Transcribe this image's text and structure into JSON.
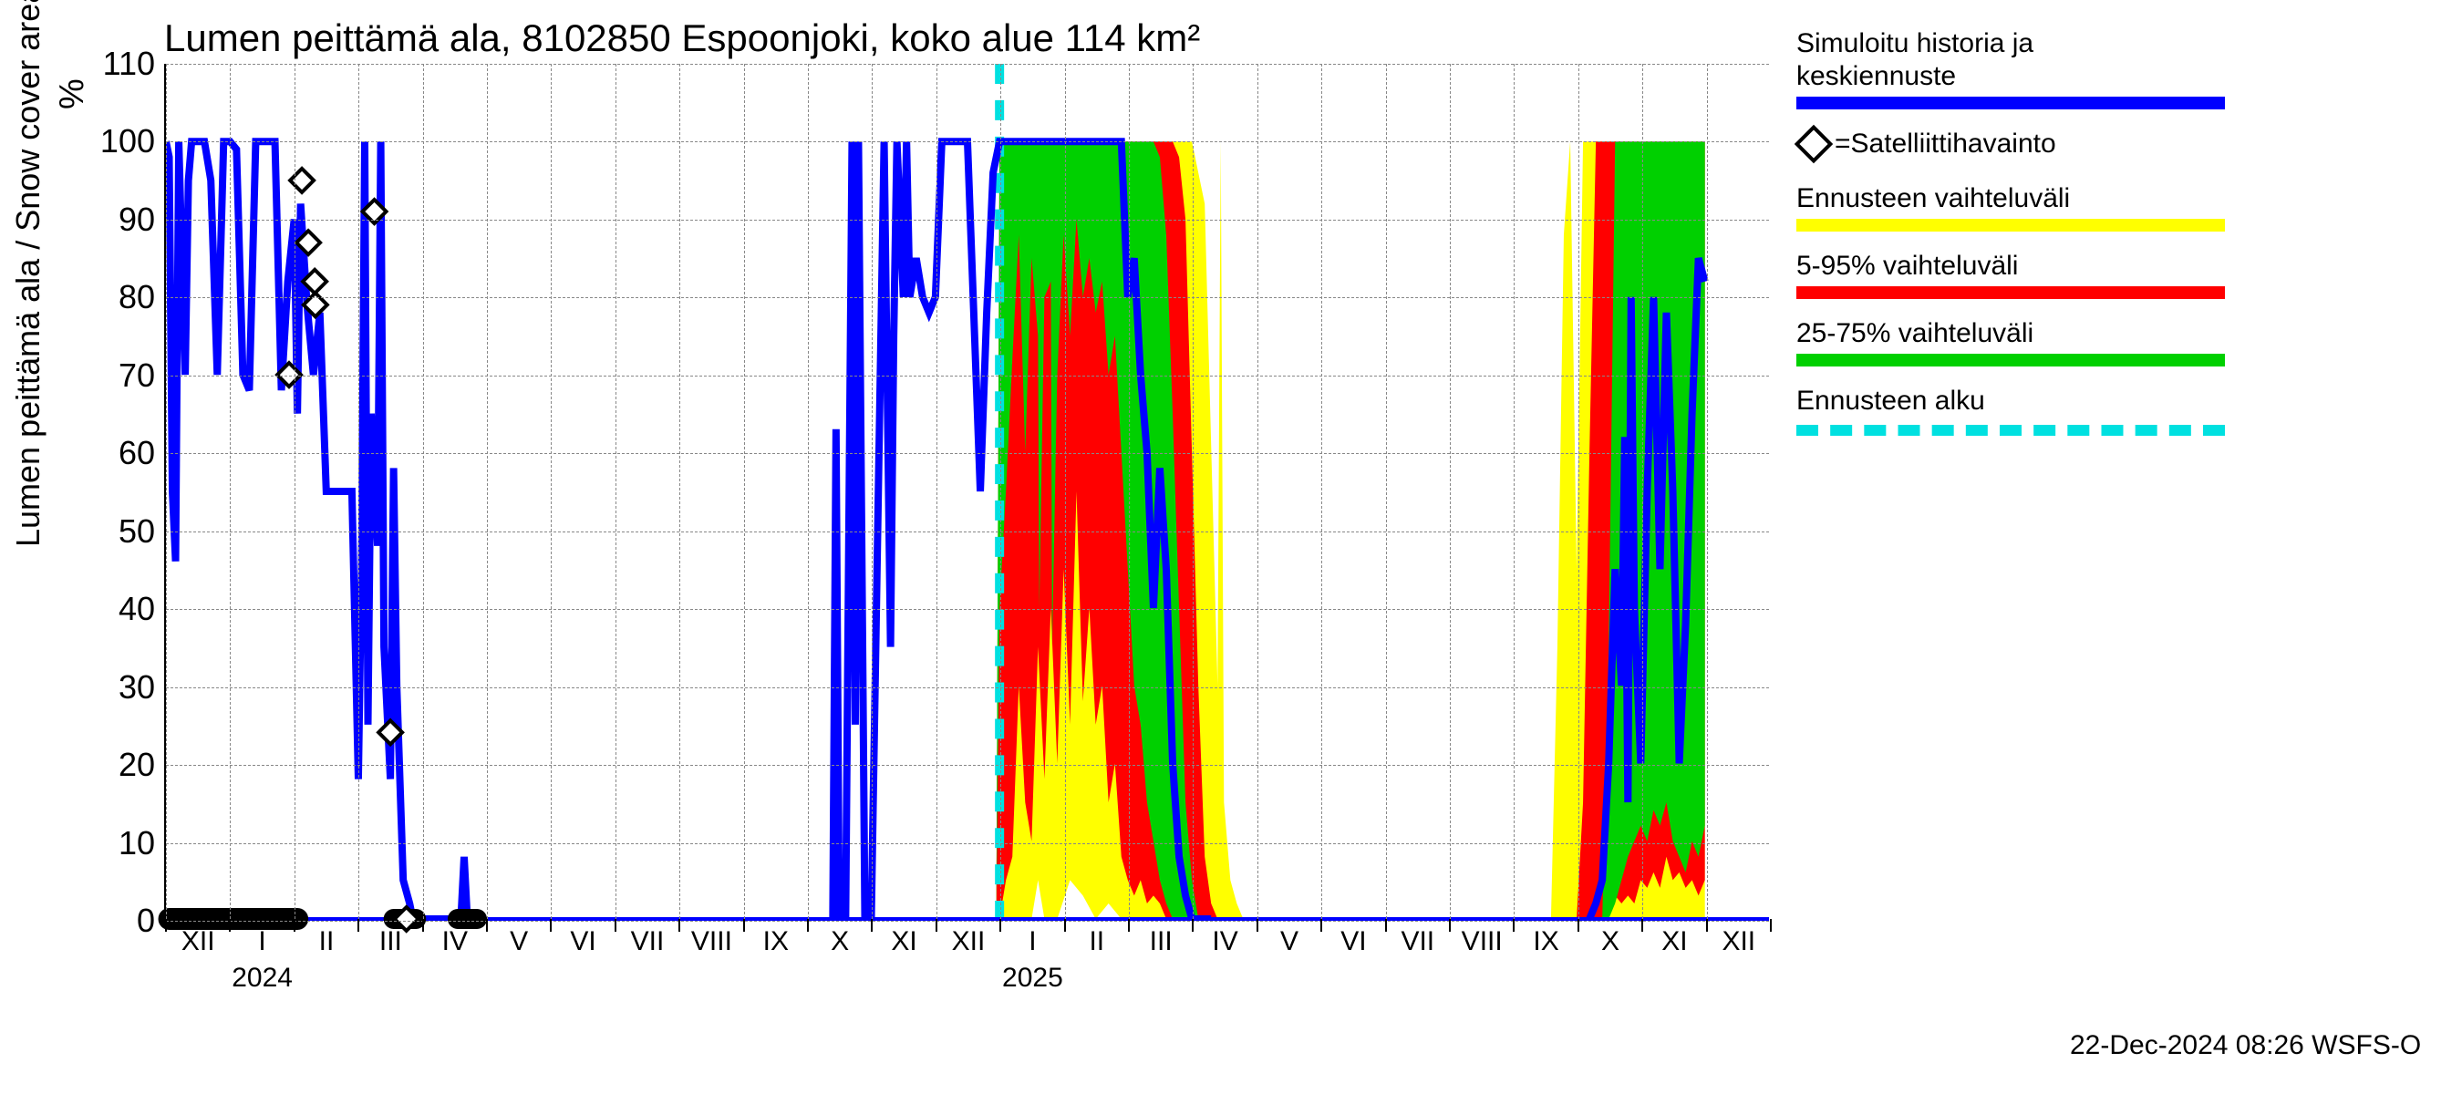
{
  "chart": {
    "type": "timeseries-forecast",
    "title": "Lumen peittämä ala, 8102850 Espoonjoki, koko alue 114 km²",
    "ylabel": "Lumen peittämä ala / Snow cover area",
    "yunit": "%",
    "background_color": "#ffffff",
    "grid_color": "#888888",
    "grid_dash": true,
    "axis_color": "#000000",
    "title_fontsize": 42,
    "label_fontsize": 36,
    "tick_fontsize": 34,
    "ylim": [
      0,
      110
    ],
    "yticks": [
      0,
      10,
      20,
      30,
      40,
      50,
      60,
      70,
      80,
      90,
      100,
      110
    ],
    "x_months": [
      "XII",
      "I",
      "II",
      "III",
      "IV",
      "V",
      "VI",
      "VII",
      "VIII",
      "IX",
      "X",
      "XI",
      "XII",
      "I",
      "II",
      "III",
      "IV",
      "V",
      "VI",
      "VII",
      "VIII",
      "IX",
      "X",
      "XI",
      "XII"
    ],
    "x_year_labels": [
      {
        "idx": 1,
        "text": "2024"
      },
      {
        "idx": 13,
        "text": "2025"
      }
    ],
    "n_months": 25,
    "forecast_start_idx": 13.0,
    "colors": {
      "sim_history": "#0000ff",
      "band_full": "#ffff00",
      "band_5_95": "#ff0000",
      "band_25_75": "#00d000",
      "forecast_start": "#00e0e0",
      "satellite_marker_edge": "#000000",
      "satellite_marker_fill": "#ffffff"
    },
    "line_width_main": 8,
    "sim_history_points": [
      [
        0.0,
        100
      ],
      [
        0.05,
        98
      ],
      [
        0.1,
        55
      ],
      [
        0.15,
        46
      ],
      [
        0.2,
        100
      ],
      [
        0.3,
        70
      ],
      [
        0.35,
        95
      ],
      [
        0.4,
        100
      ],
      [
        0.5,
        100
      ],
      [
        0.6,
        100
      ],
      [
        0.7,
        95
      ],
      [
        0.8,
        70
      ],
      [
        0.9,
        100
      ],
      [
        1.0,
        100
      ],
      [
        1.1,
        99
      ],
      [
        1.2,
        70
      ],
      [
        1.3,
        68
      ],
      [
        1.4,
        100
      ],
      [
        1.5,
        100
      ],
      [
        1.6,
        100
      ],
      [
        1.7,
        100
      ],
      [
        1.8,
        68
      ],
      [
        1.9,
        82
      ],
      [
        2.0,
        90
      ],
      [
        2.05,
        65
      ],
      [
        2.1,
        92
      ],
      [
        2.2,
        79
      ],
      [
        2.3,
        70
      ],
      [
        2.4,
        78
      ],
      [
        2.5,
        55
      ],
      [
        2.6,
        55
      ],
      [
        2.7,
        55
      ],
      [
        2.8,
        55
      ],
      [
        2.9,
        55
      ],
      [
        3.0,
        18
      ],
      [
        3.05,
        45
      ],
      [
        3.1,
        100
      ],
      [
        3.15,
        25
      ],
      [
        3.2,
        65
      ],
      [
        3.3,
        48
      ],
      [
        3.35,
        100
      ],
      [
        3.4,
        35
      ],
      [
        3.5,
        18
      ],
      [
        3.55,
        58
      ],
      [
        3.6,
        30
      ],
      [
        3.7,
        5
      ],
      [
        3.8,
        2
      ],
      [
        3.85,
        0
      ],
      [
        4.6,
        0
      ],
      [
        4.65,
        8
      ],
      [
        4.7,
        0
      ],
      [
        4.8,
        0
      ],
      [
        10.4,
        0
      ],
      [
        10.45,
        63
      ],
      [
        10.5,
        0
      ],
      [
        10.6,
        0
      ],
      [
        10.7,
        100
      ],
      [
        10.75,
        25
      ],
      [
        10.8,
        100
      ],
      [
        10.9,
        0
      ],
      [
        10.95,
        0
      ],
      [
        11.0,
        0
      ],
      [
        11.2,
        100
      ],
      [
        11.3,
        35
      ],
      [
        11.35,
        75
      ],
      [
        11.4,
        100
      ],
      [
        11.5,
        80
      ],
      [
        11.55,
        100
      ],
      [
        11.6,
        80
      ],
      [
        11.7,
        85
      ],
      [
        11.8,
        80
      ],
      [
        11.9,
        78
      ],
      [
        12.0,
        80
      ],
      [
        12.1,
        100
      ],
      [
        12.3,
        100
      ],
      [
        12.5,
        100
      ],
      [
        12.7,
        55
      ],
      [
        12.8,
        78
      ],
      [
        12.9,
        96
      ],
      [
        13.0,
        100
      ],
      [
        13.5,
        100
      ],
      [
        14.0,
        100
      ],
      [
        14.3,
        100
      ],
      [
        14.5,
        100
      ],
      [
        14.7,
        100
      ],
      [
        14.9,
        100
      ],
      [
        15.0,
        80
      ],
      [
        15.1,
        85
      ],
      [
        15.2,
        70
      ],
      [
        15.3,
        60
      ],
      [
        15.4,
        40
      ],
      [
        15.5,
        58
      ],
      [
        15.6,
        45
      ],
      [
        15.7,
        20
      ],
      [
        15.8,
        8
      ],
      [
        15.9,
        3
      ],
      [
        16.0,
        0
      ],
      [
        16.1,
        0
      ],
      [
        16.2,
        0
      ],
      [
        16.3,
        0
      ],
      [
        22.2,
        0
      ],
      [
        22.3,
        2
      ],
      [
        22.4,
        5
      ],
      [
        22.5,
        20
      ],
      [
        22.6,
        45
      ],
      [
        22.7,
        30
      ],
      [
        22.75,
        62
      ],
      [
        22.8,
        15
      ],
      [
        22.85,
        80
      ],
      [
        22.9,
        40
      ],
      [
        23.0,
        20
      ],
      [
        23.1,
        55
      ],
      [
        23.2,
        80
      ],
      [
        23.3,
        45
      ],
      [
        23.4,
        78
      ],
      [
        23.5,
        55
      ],
      [
        23.6,
        20
      ],
      [
        23.7,
        38
      ],
      [
        23.8,
        65
      ],
      [
        23.9,
        85
      ],
      [
        24.0,
        82
      ]
    ],
    "satellite_points": [
      {
        "x": 1.92,
        "y": 70
      },
      {
        "x": 2.12,
        "y": 95
      },
      {
        "x": 2.22,
        "y": 87
      },
      {
        "x": 2.32,
        "y": 82
      },
      {
        "x": 2.33,
        "y": 79
      },
      {
        "x": 3.5,
        "y": 24
      },
      {
        "x": 3.25,
        "y": 91
      },
      {
        "x": 3.75,
        "y": 0
      }
    ],
    "satellite_baseline_left": [
      0.05,
      2.05
    ],
    "satellite_baseline_segments": [
      [
        3.55,
        3.9
      ],
      [
        4.55,
        4.85
      ]
    ],
    "band_full": [
      [
        12.95,
        0,
        0
      ],
      [
        13.0,
        0,
        100
      ],
      [
        13.1,
        0,
        100
      ],
      [
        13.3,
        0,
        100
      ],
      [
        13.5,
        0,
        100
      ],
      [
        13.6,
        5,
        100
      ],
      [
        13.7,
        0,
        100
      ],
      [
        13.9,
        0,
        100
      ],
      [
        14.1,
        5,
        100
      ],
      [
        14.3,
        3,
        100
      ],
      [
        14.5,
        0,
        100
      ],
      [
        14.7,
        2,
        100
      ],
      [
        14.9,
        0,
        100
      ],
      [
        15.1,
        0,
        100
      ],
      [
        15.3,
        0,
        100
      ],
      [
        15.5,
        0,
        100
      ],
      [
        15.7,
        0,
        100
      ],
      [
        15.9,
        0,
        100
      ],
      [
        16.0,
        0,
        100
      ],
      [
        16.2,
        0,
        92
      ],
      [
        16.4,
        0,
        30
      ],
      [
        16.45,
        0,
        100
      ],
      [
        16.5,
        0,
        15
      ],
      [
        16.6,
        0,
        5
      ],
      [
        16.7,
        0,
        2
      ],
      [
        16.8,
        0,
        0
      ],
      [
        21.6,
        0,
        0
      ],
      [
        21.7,
        0,
        35
      ],
      [
        21.8,
        0,
        88
      ],
      [
        21.9,
        0,
        100
      ],
      [
        22.0,
        0,
        45
      ],
      [
        22.1,
        0,
        100
      ],
      [
        22.2,
        0,
        100
      ],
      [
        22.4,
        0,
        100
      ],
      [
        22.6,
        0,
        100
      ],
      [
        22.8,
        0,
        100
      ],
      [
        23.0,
        0,
        100
      ],
      [
        23.2,
        0,
        100
      ],
      [
        23.4,
        0,
        100
      ],
      [
        23.6,
        0,
        100
      ],
      [
        23.8,
        0,
        100
      ],
      [
        24.0,
        0,
        100
      ]
    ],
    "band_5_95": [
      [
        12.95,
        0,
        0
      ],
      [
        13.0,
        0,
        100
      ],
      [
        13.1,
        5,
        100
      ],
      [
        13.2,
        8,
        100
      ],
      [
        13.3,
        30,
        100
      ],
      [
        13.4,
        15,
        100
      ],
      [
        13.5,
        10,
        100
      ],
      [
        13.6,
        35,
        100
      ],
      [
        13.7,
        18,
        100
      ],
      [
        13.8,
        40,
        100
      ],
      [
        13.9,
        20,
        100
      ],
      [
        14.0,
        45,
        100
      ],
      [
        14.1,
        25,
        100
      ],
      [
        14.2,
        55,
        100
      ],
      [
        14.3,
        28,
        100
      ],
      [
        14.4,
        40,
        100
      ],
      [
        14.5,
        25,
        100
      ],
      [
        14.6,
        30,
        100
      ],
      [
        14.7,
        15,
        100
      ],
      [
        14.8,
        20,
        100
      ],
      [
        14.9,
        8,
        100
      ],
      [
        15.0,
        5,
        100
      ],
      [
        15.1,
        3,
        100
      ],
      [
        15.2,
        5,
        100
      ],
      [
        15.3,
        2,
        100
      ],
      [
        15.4,
        3,
        100
      ],
      [
        15.5,
        2,
        100
      ],
      [
        15.6,
        0,
        100
      ],
      [
        15.7,
        0,
        100
      ],
      [
        15.8,
        0,
        98
      ],
      [
        15.9,
        0,
        90
      ],
      [
        16.0,
        0,
        60
      ],
      [
        16.1,
        0,
        30
      ],
      [
        16.2,
        0,
        8
      ],
      [
        16.3,
        0,
        2
      ],
      [
        16.4,
        0,
        0
      ],
      [
        22.0,
        0,
        0
      ],
      [
        22.1,
        0,
        15
      ],
      [
        22.2,
        0,
        60
      ],
      [
        22.3,
        0,
        100
      ],
      [
        22.4,
        0,
        100
      ],
      [
        22.5,
        2,
        100
      ],
      [
        22.6,
        3,
        100
      ],
      [
        22.7,
        2,
        100
      ],
      [
        22.8,
        3,
        100
      ],
      [
        22.9,
        2,
        100
      ],
      [
        23.0,
        5,
        100
      ],
      [
        23.1,
        4,
        100
      ],
      [
        23.2,
        6,
        100
      ],
      [
        23.3,
        4,
        100
      ],
      [
        23.4,
        8,
        100
      ],
      [
        23.5,
        5,
        100
      ],
      [
        23.6,
        6,
        100
      ],
      [
        23.7,
        4,
        100
      ],
      [
        23.8,
        5,
        100
      ],
      [
        23.9,
        3,
        100
      ],
      [
        24.0,
        5,
        100
      ]
    ],
    "band_25_75": [
      [
        12.95,
        0,
        0
      ],
      [
        13.0,
        40,
        100
      ],
      [
        13.1,
        55,
        100
      ],
      [
        13.2,
        72,
        100
      ],
      [
        13.3,
        88,
        100
      ],
      [
        13.4,
        60,
        100
      ],
      [
        13.5,
        85,
        100
      ],
      [
        13.6,
        75,
        100
      ],
      [
        13.62,
        40,
        100
      ],
      [
        13.7,
        80,
        100
      ],
      [
        13.8,
        82,
        100
      ],
      [
        13.82,
        35,
        100
      ],
      [
        13.9,
        70,
        100
      ],
      [
        14.0,
        88,
        100
      ],
      [
        14.1,
        75,
        100
      ],
      [
        14.2,
        90,
        100
      ],
      [
        14.3,
        80,
        100
      ],
      [
        14.4,
        85,
        100
      ],
      [
        14.5,
        78,
        100
      ],
      [
        14.6,
        82,
        100
      ],
      [
        14.7,
        70,
        100
      ],
      [
        14.8,
        75,
        100
      ],
      [
        14.9,
        60,
        100
      ],
      [
        15.0,
        45,
        100
      ],
      [
        15.1,
        30,
        100
      ],
      [
        15.2,
        25,
        100
      ],
      [
        15.3,
        15,
        100
      ],
      [
        15.4,
        10,
        100
      ],
      [
        15.5,
        5,
        98
      ],
      [
        15.6,
        2,
        88
      ],
      [
        15.7,
        0,
        65
      ],
      [
        15.8,
        0,
        40
      ],
      [
        15.9,
        0,
        15
      ],
      [
        16.0,
        0,
        5
      ],
      [
        16.1,
        0,
        0
      ],
      [
        22.4,
        0,
        0
      ],
      [
        22.5,
        0,
        35
      ],
      [
        22.6,
        2,
        100
      ],
      [
        22.7,
        5,
        100
      ],
      [
        22.8,
        8,
        100
      ],
      [
        22.9,
        10,
        100
      ],
      [
        23.0,
        12,
        100
      ],
      [
        23.1,
        10,
        100
      ],
      [
        23.2,
        14,
        100
      ],
      [
        23.3,
        12,
        100
      ],
      [
        23.4,
        15,
        100
      ],
      [
        23.5,
        10,
        100
      ],
      [
        23.6,
        8,
        100
      ],
      [
        23.7,
        6,
        100
      ],
      [
        23.8,
        10,
        100
      ],
      [
        23.9,
        8,
        100
      ],
      [
        24.0,
        12,
        100
      ]
    ]
  },
  "legend": {
    "items": [
      {
        "label": "Simuloitu historia ja\nkeskiennuste",
        "type": "line",
        "color": "#0000ff"
      },
      {
        "label": "=Satelliittihavainto",
        "type": "marker"
      },
      {
        "label": "Ennusteen vaihteluväli",
        "type": "swatch",
        "color": "#ffff00"
      },
      {
        "label": "5-95% vaihteluväli",
        "type": "swatch",
        "color": "#ff0000"
      },
      {
        "label": "25-75% vaihteluväli",
        "type": "swatch",
        "color": "#00d000"
      },
      {
        "label": "Ennusteen alku",
        "type": "dash",
        "color": "#00e0e0"
      }
    ]
  },
  "timestamp": "22-Dec-2024 08:26 WSFS-O"
}
